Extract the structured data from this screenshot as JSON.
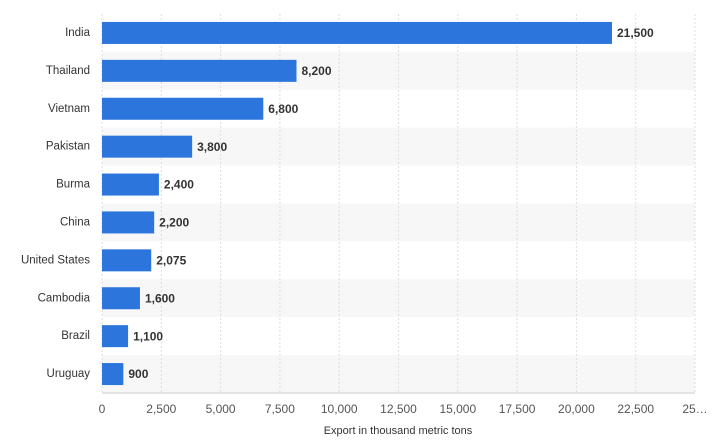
{
  "chart_data": {
    "type": "bar",
    "orientation": "horizontal",
    "categories": [
      "India",
      "Thailand",
      "Vietnam",
      "Pakistan",
      "Burma",
      "China",
      "United States",
      "Cambodia",
      "Brazil",
      "Uruguay"
    ],
    "values": [
      21500,
      8200,
      6800,
      3800,
      2400,
      2200,
      2075,
      1600,
      1100,
      900
    ],
    "value_labels": [
      "21,500",
      "8,200",
      "6,800",
      "3,800",
      "2,400",
      "2,200",
      "2,075",
      "1,600",
      "1,100",
      "900"
    ],
    "color": "#2b75dc",
    "xlabel": "Export in thousand metric tons",
    "xlim": [
      0,
      25000
    ],
    "xticks": [
      0,
      {
        "value": 2500,
        "label": "2,500"
      },
      {
        "value": 5000,
        "label": "5,000"
      },
      {
        "value": 7500,
        "label": "7,500"
      },
      {
        "value": 10000,
        "label": "10,000"
      },
      {
        "value": 12500,
        "label": "12,500"
      },
      {
        "value": 15000,
        "label": "15,000"
      },
      {
        "value": 17500,
        "label": "17,500"
      },
      {
        "value": 20000,
        "label": "20,000"
      },
      {
        "value": 22500,
        "label": "22,500"
      },
      {
        "value": 25000,
        "label": "25…"
      }
    ],
    "grid": true
  }
}
